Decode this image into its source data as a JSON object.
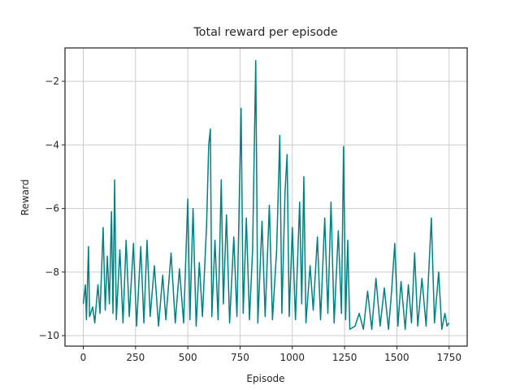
{
  "chart_data": {
    "type": "line",
    "title": "Total reward per episode",
    "x_label": "Episode",
    "y_label": "Reward",
    "grid": true,
    "xlim": [
      -87.45,
      1836.45
    ],
    "ylim": [
      -10.33,
      -0.95
    ],
    "xticks": [
      0,
      250,
      500,
      750,
      1000,
      1250,
      1500,
      1750
    ],
    "yticks": [
      {
        "value": -10,
        "label": "−10"
      },
      {
        "value": -8,
        "label": "−8"
      },
      {
        "value": -6,
        "label": "−6"
      },
      {
        "value": -4,
        "label": "−4"
      },
      {
        "value": -2,
        "label": "−2"
      }
    ],
    "series": [
      {
        "color": "#008080",
        "x": [
          0,
          10,
          15,
          25,
          30,
          45,
          55,
          70,
          80,
          95,
          105,
          115,
          125,
          135,
          142,
          150,
          158,
          175,
          190,
          205,
          220,
          240,
          255,
          275,
          290,
          305,
          320,
          340,
          360,
          380,
          395,
          420,
          440,
          460,
          480,
          500,
          510,
          525,
          540,
          555,
          570,
          590,
          600,
          608,
          615,
          630,
          645,
          660,
          670,
          685,
          700,
          720,
          735,
          755,
          765,
          780,
          795,
          810,
          825,
          835,
          855,
          870,
          890,
          905,
          925,
          940,
          950,
          965,
          975,
          985,
          1000,
          1015,
          1035,
          1045,
          1055,
          1065,
          1085,
          1100,
          1120,
          1135,
          1155,
          1170,
          1185,
          1200,
          1220,
          1235,
          1245,
          1255,
          1265,
          1275,
          1300,
          1320,
          1340,
          1360,
          1380,
          1400,
          1420,
          1440,
          1460,
          1475,
          1490,
          1505,
          1520,
          1540,
          1555,
          1570,
          1585,
          1600,
          1620,
          1640,
          1665,
          1680,
          1700,
          1715,
          1730,
          1740,
          1749
        ],
        "values": [
          -9.0,
          -8.4,
          -9.5,
          -7.2,
          -9.4,
          -9.1,
          -9.6,
          -8.4,
          -9.3,
          -6.6,
          -9.2,
          -7.5,
          -9.0,
          -6.1,
          -9.3,
          -5.1,
          -9.5,
          -7.3,
          -9.6,
          -7.0,
          -9.4,
          -7.1,
          -9.7,
          -7.2,
          -9.6,
          -7.0,
          -9.4,
          -7.8,
          -9.7,
          -8.1,
          -9.5,
          -7.4,
          -9.6,
          -7.9,
          -9.6,
          -5.7,
          -9.5,
          -6.0,
          -9.7,
          -7.7,
          -9.4,
          -6.5,
          -4.0,
          -3.5,
          -9.4,
          -7.0,
          -9.5,
          -5.1,
          -9.0,
          -6.2,
          -9.6,
          -6.9,
          -9.4,
          -2.85,
          -9.3,
          -6.3,
          -9.5,
          -7.3,
          -1.35,
          -9.6,
          -6.4,
          -9.4,
          -5.9,
          -9.5,
          -7.3,
          -3.7,
          -9.3,
          -5.5,
          -4.3,
          -9.4,
          -6.6,
          -9.5,
          -5.8,
          -9.0,
          -5.0,
          -9.6,
          -7.8,
          -9.2,
          -6.9,
          -9.5,
          -6.3,
          -9.3,
          -5.8,
          -9.6,
          -6.7,
          -9.3,
          -4.05,
          -9.5,
          -7.0,
          -9.8,
          -9.7,
          -9.3,
          -9.8,
          -8.6,
          -9.8,
          -8.2,
          -9.7,
          -8.5,
          -9.8,
          -8.6,
          -7.1,
          -9.7,
          -8.3,
          -9.8,
          -8.4,
          -9.6,
          -7.4,
          -9.7,
          -8.2,
          -9.7,
          -6.3,
          -9.6,
          -8.0,
          -9.8,
          -9.3,
          -9.7,
          -9.6
        ]
      }
    ]
  }
}
